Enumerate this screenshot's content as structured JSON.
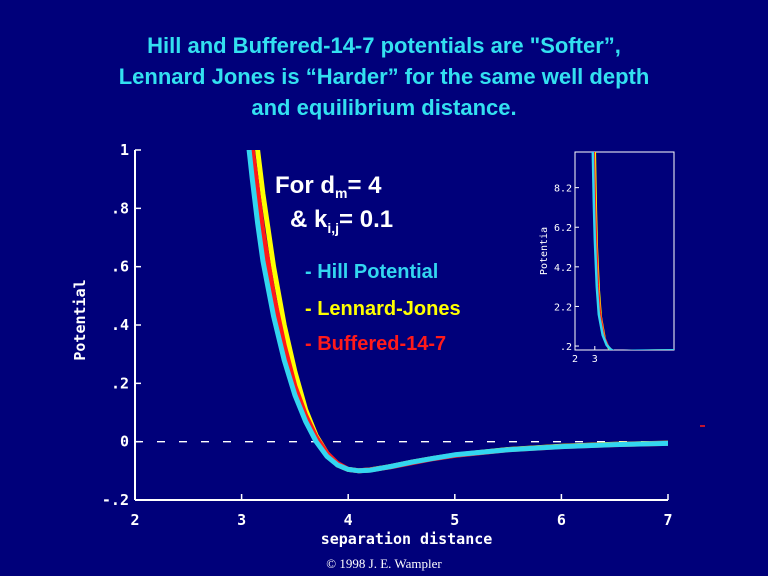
{
  "title": {
    "line1": "Hill and Buffered-14-7 potentials are  \"Softer”,",
    "line2": "Lennard Jones is “Harder” for the same well depth",
    "line3": "and equilibrium distance."
  },
  "annotation": {
    "line1_pre": "For d",
    "line1_sub": "m",
    "line1_post": "= 4",
    "line2_pre": "&  k",
    "line2_sub": "i,j",
    "line2_post": "= 0.1"
  },
  "copyright": "© 1998 J. E. Wampler",
  "colors": {
    "background": "#00007a",
    "title": "#33e0f0",
    "hill": "#33d6f0",
    "lennard_jones": "#ffff00",
    "buffered": "#ff1a1a",
    "axes": "#ffffff"
  },
  "chart_data": [
    {
      "type": "line",
      "xlabel": "separation distance",
      "ylabel": "Potential",
      "xlim": [
        2,
        7
      ],
      "ylim": [
        -0.2,
        1
      ],
      "x_ticks": [
        "2",
        "3",
        "4",
        "5",
        "6",
        "7"
      ],
      "y_ticks": [
        "-.2",
        "0",
        ".2",
        ".4",
        ".6",
        ".8",
        "1"
      ],
      "reference_line": {
        "y": 0,
        "style": "dashed"
      },
      "legend_position": "center-right",
      "series": [
        {
          "name": "- Hill Potential",
          "color": "#33d6f0",
          "x": [
            3.07,
            3.1,
            3.15,
            3.2,
            3.3,
            3.4,
            3.5,
            3.6,
            3.7,
            3.8,
            3.9,
            4.0,
            4.1,
            4.2,
            4.4,
            4.6,
            4.8,
            5.0,
            5.5,
            6.0,
            6.5,
            7.0
          ],
          "y": [
            1.0,
            0.9,
            0.75,
            0.62,
            0.43,
            0.28,
            0.16,
            0.07,
            0.0,
            -0.05,
            -0.08,
            -0.095,
            -0.1,
            -0.098,
            -0.085,
            -0.07,
            -0.057,
            -0.045,
            -0.028,
            -0.017,
            -0.01,
            -0.006
          ]
        },
        {
          "name": "- Lennard-Jones",
          "color": "#ffff00",
          "x": [
            3.15,
            3.2,
            3.3,
            3.4,
            3.5,
            3.6,
            3.7,
            3.8,
            3.9,
            4.0,
            4.1,
            4.2,
            4.4,
            4.6,
            4.8,
            5.0,
            5.5,
            6.0,
            6.5,
            7.0
          ],
          "y": [
            1.0,
            0.85,
            0.6,
            0.4,
            0.24,
            0.11,
            0.02,
            -0.04,
            -0.08,
            -0.095,
            -0.1,
            -0.097,
            -0.085,
            -0.07,
            -0.057,
            -0.046,
            -0.027,
            -0.016,
            -0.009,
            -0.005
          ]
        },
        {
          "name": "- Buffered-14-7",
          "color": "#ff1a1a",
          "x": [
            3.1,
            3.15,
            3.2,
            3.3,
            3.4,
            3.5,
            3.6,
            3.7,
            3.8,
            3.9,
            4.0,
            4.1,
            4.2,
            4.4,
            4.6,
            4.8,
            5.0,
            5.5,
            6.0,
            6.5,
            7.0
          ],
          "y": [
            1.0,
            0.86,
            0.72,
            0.5,
            0.33,
            0.19,
            0.09,
            0.015,
            -0.04,
            -0.075,
            -0.095,
            -0.1,
            -0.097,
            -0.086,
            -0.072,
            -0.058,
            -0.047,
            -0.028,
            -0.017,
            -0.01,
            -0.006
          ]
        }
      ]
    },
    {
      "type": "line",
      "xlabel": "",
      "ylabel": "Potentia",
      "xlim": [
        2,
        7
      ],
      "ylim": [
        0,
        10
      ],
      "x_ticks": [
        "2",
        "3"
      ],
      "y_ticks": [
        ".2",
        "2.2",
        "4.2",
        "6.2",
        "8.2"
      ],
      "series": [
        {
          "color": "#33d6f0",
          "x": [
            2.9,
            2.95,
            3.0,
            3.1,
            3.2,
            3.4,
            3.6,
            3.8,
            4.0,
            5.0,
            7.0
          ],
          "y": [
            10,
            7.5,
            5.6,
            3.2,
            1.8,
            0.75,
            0.25,
            0.03,
            -0.08,
            -0.04,
            -0.01
          ]
        },
        {
          "color": "#ffff00",
          "x": [
            3.0,
            3.05,
            3.1,
            3.2,
            3.3,
            3.5,
            3.7,
            3.9,
            4.1,
            5.0,
            7.0
          ],
          "y": [
            10,
            7.2,
            5.2,
            3.0,
            1.7,
            0.55,
            0.1,
            -0.05,
            -0.1,
            -0.05,
            -0.01
          ]
        },
        {
          "color": "#ff1a1a",
          "x": [
            2.95,
            3.0,
            3.05,
            3.15,
            3.25,
            3.45,
            3.65,
            3.85,
            4.05,
            5.0,
            7.0
          ],
          "y": [
            10,
            7.6,
            5.8,
            3.3,
            1.9,
            0.7,
            0.2,
            -0.02,
            -0.09,
            -0.045,
            -0.01
          ]
        }
      ]
    }
  ]
}
